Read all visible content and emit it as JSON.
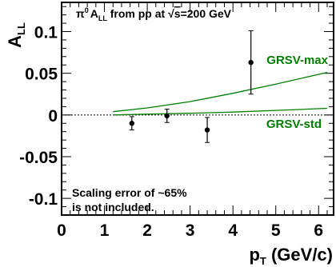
{
  "chart_data": {
    "type": "scatter",
    "title": {
      "prefix": "π",
      "prefix_sup": "0",
      "a": "A",
      "a_sub": "LL",
      "middle": " from pp at ",
      "root": "√",
      "s": "s",
      "suffix": "=200 GeV"
    },
    "ylabel": {
      "main": "A",
      "sub": "LL"
    },
    "xlabel": {
      "main": "p",
      "sub": "T",
      "unit": " (GeV/c)"
    },
    "xlim": [
      0,
      6.35
    ],
    "ylim": [
      -0.12,
      0.135
    ],
    "x_ticks": [
      0,
      1,
      2,
      3,
      4,
      5,
      6
    ],
    "y_ticks": [
      -0.1,
      -0.05,
      0,
      0.05,
      0.1
    ],
    "x_tick_labels": [
      "0",
      "1",
      "2",
      "3",
      "4",
      "5",
      "6"
    ],
    "y_tick_labels": [
      "-0.1",
      "-0.05",
      "0",
      "0.05",
      "0.1"
    ],
    "zero_line": {
      "style": "dotted"
    },
    "series": [
      {
        "marker": "circle",
        "color": "#000000",
        "x": [
          1.64,
          2.46,
          3.4,
          4.42
        ],
        "y": [
          -0.01,
          -0.001,
          -0.018,
          0.063
        ],
        "yerr": [
          0.008,
          0.008,
          0.015,
          0.038
        ]
      }
    ],
    "curves": [
      {
        "name": "GRSV-max",
        "color": "#008000",
        "x": [
          1.2,
          2.0,
          3.0,
          4.0,
          5.0,
          6.2
        ],
        "y": [
          0.004,
          0.0085,
          0.016,
          0.026,
          0.037,
          0.051
        ]
      },
      {
        "name": "GRSV-std",
        "color": "#008000",
        "x": [
          1.2,
          2.0,
          3.0,
          4.0,
          5.0,
          6.2
        ],
        "y": [
          0.0,
          0.001,
          0.002,
          0.0035,
          0.0055,
          0.008
        ]
      }
    ],
    "annotation": [
      "Scaling error of ~65%",
      "is not included."
    ]
  }
}
